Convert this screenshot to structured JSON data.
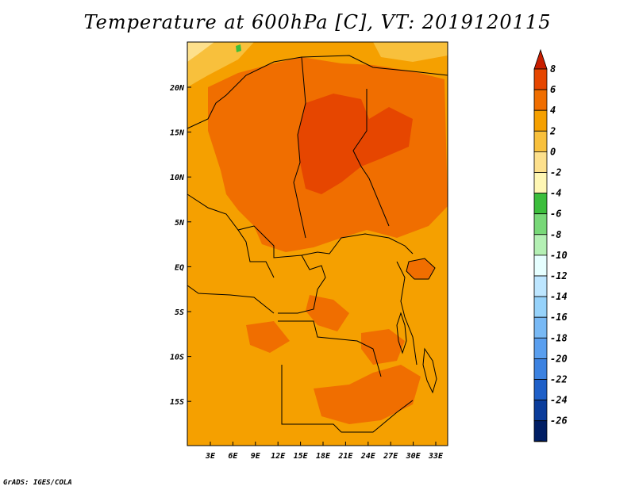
{
  "title": "Temperature at 600hPa [C], VT: 2019120115",
  "credit": "GrADS: IGES/COLA",
  "map": {
    "lat_labels": [
      "20N",
      "15N",
      "10N",
      "5N",
      "EQ",
      "5S",
      "10S",
      "15S"
    ],
    "lon_labels": [
      "3E",
      "6E",
      "9E",
      "12E",
      "15E",
      "18E",
      "21E",
      "24E",
      "27E",
      "30E",
      "33E"
    ]
  },
  "colorbar": {
    "labels": [
      "8",
      "6",
      "4",
      "2",
      "0",
      "-2",
      "-4",
      "-6",
      "-8",
      "-10",
      "-12",
      "-14",
      "-16",
      "-18",
      "-20",
      "-22",
      "-24",
      "-26"
    ],
    "colors": [
      "#c81e00",
      "#e64600",
      "#f06e00",
      "#f5a000",
      "#f8c03c",
      "#fde08c",
      "#fff7b4",
      "#3cbe3c",
      "#78d878",
      "#b4f0b4",
      "#e6ffff",
      "#bde6ff",
      "#96d2fa",
      "#78b9f5",
      "#5a9fef",
      "#3c82e1",
      "#1e5fc8",
      "#0a3c9b",
      "#001e64",
      "#dcdcf5"
    ]
  }
}
